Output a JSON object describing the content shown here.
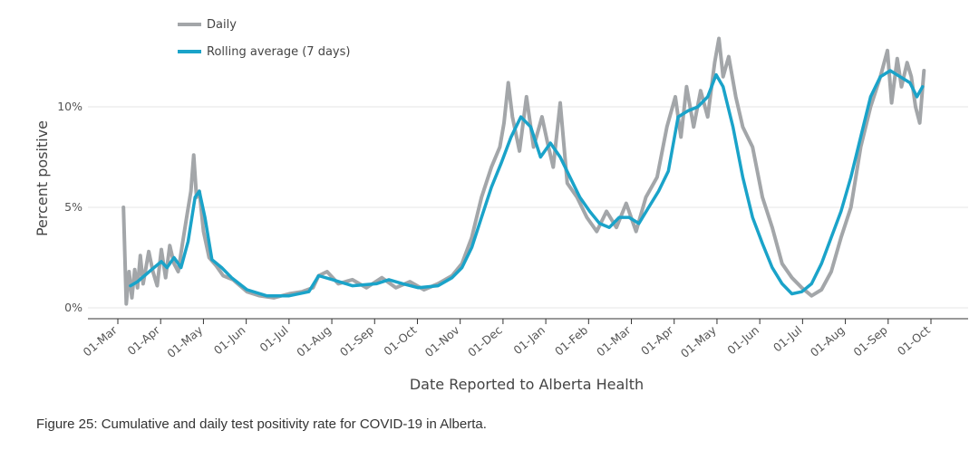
{
  "caption": "Figure 25: Cumulative and daily test positivity rate for COVID-19 in Alberta.",
  "chart_data": {
    "type": "line",
    "title": "",
    "xlabel": "Date Reported to Alberta Health",
    "ylabel": "Percent positive",
    "y_ticks": [
      "0%",
      "5%",
      "10%"
    ],
    "ylim": [
      0,
      13.5
    ],
    "x_ticks": [
      "01-Mar",
      "01-Apr",
      "01-May",
      "01-Jun",
      "01-Jul",
      "01-Aug",
      "01-Sep",
      "01-Oct",
      "01-Nov",
      "01-Dec",
      "01-Jan",
      "01-Feb",
      "01-Mar",
      "01-Apr",
      "01-May",
      "01-Jun",
      "01-Jul",
      "01-Aug",
      "01-Sep",
      "01-Oct"
    ],
    "x_range": [
      "2020-03-01",
      "2021-10-01"
    ],
    "grid": "horizontal",
    "legend_position": "top-left",
    "colors": {
      "daily": "#a3a6a9",
      "rolling": "#1aa3c9",
      "grid": "#e6e6e6",
      "axis": "#333333"
    },
    "series": [
      {
        "name": "Daily",
        "style": "thick gray line",
        "x": [
          "2020-03-05",
          "2020-03-07",
          "2020-03-09",
          "2020-03-11",
          "2020-03-13",
          "2020-03-15",
          "2020-03-17",
          "2020-03-19",
          "2020-03-21",
          "2020-03-23",
          "2020-03-26",
          "2020-03-29",
          "2020-04-01",
          "2020-04-04",
          "2020-04-07",
          "2020-04-10",
          "2020-04-13",
          "2020-04-16",
          "2020-04-19",
          "2020-04-22",
          "2020-04-24",
          "2020-04-26",
          "2020-04-28",
          "2020-05-01",
          "2020-05-05",
          "2020-05-10",
          "2020-05-15",
          "2020-05-22",
          "2020-06-01",
          "2020-06-10",
          "2020-06-20",
          "2020-07-01",
          "2020-07-10",
          "2020-07-18",
          "2020-07-22",
          "2020-07-28",
          "2020-08-05",
          "2020-08-15",
          "2020-08-25",
          "2020-09-05",
          "2020-09-15",
          "2020-09-25",
          "2020-10-05",
          "2020-10-15",
          "2020-10-25",
          "2020-11-01",
          "2020-11-08",
          "2020-11-15",
          "2020-11-22",
          "2020-11-28",
          "2020-12-01",
          "2020-12-04",
          "2020-12-07",
          "2020-12-12",
          "2020-12-17",
          "2020-12-22",
          "2020-12-28",
          "2021-01-01",
          "2021-01-05",
          "2021-01-10",
          "2021-01-15",
          "2021-01-22",
          "2021-01-29",
          "2021-02-05",
          "2021-02-12",
          "2021-02-19",
          "2021-02-26",
          "2021-03-05",
          "2021-03-12",
          "2021-03-20",
          "2021-03-27",
          "2021-04-02",
          "2021-04-06",
          "2021-04-10",
          "2021-04-15",
          "2021-04-20",
          "2021-04-25",
          "2021-04-30",
          "2021-05-03",
          "2021-05-06",
          "2021-05-10",
          "2021-05-15",
          "2021-05-20",
          "2021-05-27",
          "2021-06-03",
          "2021-06-10",
          "2021-06-17",
          "2021-06-24",
          "2021-07-01",
          "2021-07-08",
          "2021-07-15",
          "2021-07-22",
          "2021-07-29",
          "2021-08-05",
          "2021-08-12",
          "2021-08-19",
          "2021-08-26",
          "2021-08-31",
          "2021-09-03",
          "2021-09-07",
          "2021-09-10",
          "2021-09-14",
          "2021-09-17",
          "2021-09-20",
          "2021-09-23",
          "2021-09-26"
        ],
        "values": [
          5.0,
          0.2,
          1.8,
          0.5,
          1.9,
          1.0,
          2.6,
          1.2,
          2.0,
          2.8,
          1.8,
          1.1,
          2.9,
          1.5,
          3.1,
          2.2,
          1.8,
          3.2,
          4.5,
          5.8,
          7.6,
          5.5,
          5.8,
          3.8,
          2.5,
          2.1,
          1.6,
          1.4,
          0.8,
          0.6,
          0.5,
          0.7,
          0.8,
          1.0,
          1.6,
          1.8,
          1.2,
          1.4,
          1.0,
          1.5,
          1.0,
          1.3,
          0.9,
          1.2,
          1.6,
          2.2,
          3.5,
          5.5,
          7.0,
          8.0,
          9.2,
          11.2,
          9.5,
          7.8,
          10.5,
          8.0,
          9.5,
          8.2,
          7.0,
          10.2,
          6.2,
          5.5,
          4.5,
          3.8,
          4.8,
          4.0,
          5.2,
          3.8,
          5.5,
          6.5,
          9.0,
          10.5,
          8.5,
          11.0,
          9.0,
          10.8,
          9.5,
          12.2,
          13.4,
          11.5,
          12.5,
          10.5,
          9.0,
          8.0,
          5.5,
          4.0,
          2.2,
          1.5,
          1.0,
          0.6,
          0.9,
          1.8,
          3.5,
          5.0,
          8.0,
          10.0,
          11.5,
          12.8,
          10.2,
          12.4,
          11.0,
          12.2,
          11.5,
          10.0,
          9.2,
          11.8
        ]
      },
      {
        "name": "Rolling average (7 days)",
        "style": "teal line",
        "x": [
          "2020-03-10",
          "2020-03-15",
          "2020-03-20",
          "2020-03-25",
          "2020-04-01",
          "2020-04-05",
          "2020-04-10",
          "2020-04-15",
          "2020-04-20",
          "2020-04-25",
          "2020-04-28",
          "2020-05-02",
          "2020-05-07",
          "2020-05-14",
          "2020-05-21",
          "2020-06-01",
          "2020-06-15",
          "2020-07-01",
          "2020-07-15",
          "2020-07-22",
          "2020-08-01",
          "2020-08-15",
          "2020-09-01",
          "2020-09-10",
          "2020-09-20",
          "2020-10-01",
          "2020-10-15",
          "2020-10-25",
          "2020-11-01",
          "2020-11-08",
          "2020-11-15",
          "2020-11-22",
          "2020-11-29",
          "2020-12-06",
          "2020-12-13",
          "2020-12-20",
          "2020-12-27",
          "2021-01-03",
          "2021-01-10",
          "2021-01-17",
          "2021-01-24",
          "2021-01-31",
          "2021-02-07",
          "2021-02-14",
          "2021-02-21",
          "2021-02-28",
          "2021-03-07",
          "2021-03-14",
          "2021-03-21",
          "2021-03-28",
          "2021-04-04",
          "2021-04-11",
          "2021-04-18",
          "2021-04-25",
          "2021-05-01",
          "2021-05-06",
          "2021-05-13",
          "2021-05-20",
          "2021-05-27",
          "2021-06-03",
          "2021-06-10",
          "2021-06-17",
          "2021-06-24",
          "2021-07-01",
          "2021-07-08",
          "2021-07-15",
          "2021-07-22",
          "2021-07-29",
          "2021-08-05",
          "2021-08-12",
          "2021-08-19",
          "2021-08-26",
          "2021-09-02",
          "2021-09-09",
          "2021-09-16",
          "2021-09-21",
          "2021-09-25"
        ],
        "values": [
          1.1,
          1.3,
          1.6,
          1.9,
          2.3,
          2.0,
          2.5,
          2.0,
          3.3,
          5.5,
          5.8,
          4.5,
          2.4,
          2.0,
          1.5,
          0.9,
          0.6,
          0.6,
          0.8,
          1.6,
          1.4,
          1.1,
          1.2,
          1.4,
          1.2,
          1.0,
          1.1,
          1.5,
          2.0,
          3.0,
          4.5,
          6.0,
          7.2,
          8.5,
          9.5,
          9.0,
          7.5,
          8.2,
          7.5,
          6.5,
          5.5,
          4.8,
          4.2,
          4.0,
          4.5,
          4.5,
          4.2,
          5.0,
          5.8,
          6.8,
          9.5,
          9.8,
          10.0,
          10.5,
          11.6,
          11.0,
          9.0,
          6.5,
          4.5,
          3.2,
          2.0,
          1.2,
          0.7,
          0.8,
          1.2,
          2.2,
          3.5,
          4.8,
          6.5,
          8.5,
          10.5,
          11.5,
          11.8,
          11.5,
          11.2,
          10.5,
          11.0
        ]
      }
    ]
  }
}
